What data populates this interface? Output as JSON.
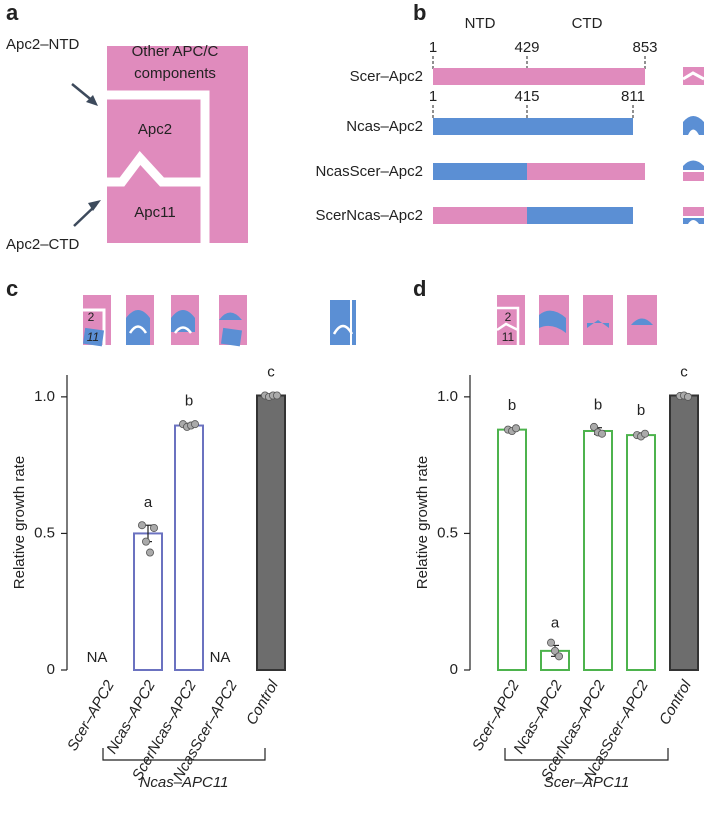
{
  "panel_letters": [
    "a",
    "b",
    "c",
    "d"
  ],
  "diagram_a": {
    "other": [
      "Other APC/C",
      "components"
    ],
    "apc2": "Apc2",
    "apc11": "Apc11",
    "ntd": "Apc2–NTD",
    "ctd": "Apc2–CTD"
  },
  "diagram_b": {
    "domains": [
      "NTD",
      "CTD"
    ],
    "scer_positions": [
      "1",
      "429",
      "853"
    ],
    "ncas_positions": [
      "1",
      "415",
      "811"
    ],
    "constructs": [
      "Scer–Apc2",
      "Ncas–Apc2",
      "NcasScer–Apc2",
      "ScerNcas–Apc2"
    ]
  },
  "schematic_labels": {
    "apc2": "2",
    "apc11": "11"
  },
  "chart_data": [
    {
      "type": "bar",
      "ylabel": "Relative growth rate",
      "group_label": "Ncas–APC11",
      "categories": [
        "Scer–APC2",
        "Ncas–APC2",
        "ScerNcas–APC2",
        "NcasScer–APC2",
        "Control"
      ],
      "values": [
        null,
        0.5,
        0.895,
        null,
        1.005
      ],
      "errors": [
        null,
        0.03,
        0.008,
        null,
        0.003
      ],
      "annotations": [
        "NA",
        "a",
        "b",
        "NA",
        "c"
      ],
      "points": [
        null,
        [
          0.53,
          0.47,
          0.43,
          0.52
        ],
        [
          0.9,
          0.89,
          0.895,
          0.9
        ],
        null,
        [
          1.005,
          1.0,
          1.005,
          1.005
        ]
      ],
      "colors": [
        "#6b72c0",
        "#6b72c0",
        "#6b72c0",
        "#6b72c0",
        "#6d6d6d"
      ],
      "ylim": [
        0,
        1.08
      ],
      "yticks": [
        0,
        0.5,
        {
          "value": 1,
          "label": "1.0"
        }
      ]
    },
    {
      "type": "bar",
      "ylabel": "Relative growth rate",
      "group_label": "Scer–APC11",
      "categories": [
        "Scer–APC2",
        "Ncas–APC2",
        "ScerNcas–APC2",
        "NcasScer–APC2",
        "Control"
      ],
      "values": [
        0.88,
        0.07,
        0.875,
        0.86,
        1.005
      ],
      "errors": [
        0.005,
        0.02,
        0.012,
        0.008,
        0.003
      ],
      "annotations": [
        "b",
        "a",
        "b",
        "b",
        "c"
      ],
      "points": [
        [
          0.88,
          0.875,
          0.885
        ],
        [
          0.1,
          0.07,
          0.05
        ],
        [
          0.89,
          0.87,
          0.865
        ],
        [
          0.86,
          0.855,
          0.865
        ],
        [
          1.003,
          1.005,
          1.0
        ]
      ],
      "colors": [
        "#4db34d",
        "#4db34d",
        "#4db34d",
        "#4db34d",
        "#6d6d6d"
      ],
      "ylim": [
        0,
        1.08
      ],
      "yticks": [
        0,
        0.5,
        {
          "value": 1,
          "label": "1.0"
        }
      ]
    }
  ]
}
